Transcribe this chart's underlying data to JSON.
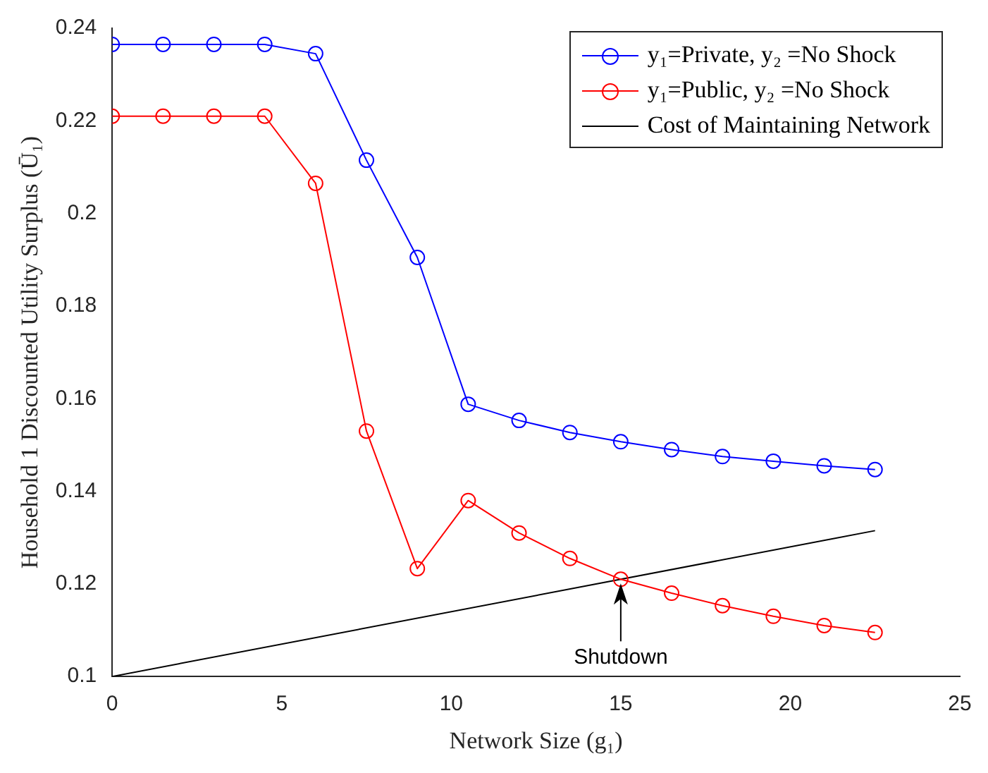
{
  "chart_data": {
    "type": "line",
    "xlabel": "Network Size (g₁)",
    "ylabel": "Household 1 Discounted Utility Surplus (Ū₁)",
    "xlim": [
      0,
      25
    ],
    "xticks": [
      0,
      5,
      10,
      15,
      20,
      25
    ],
    "ylim": [
      0.1,
      0.24
    ],
    "yticks": [
      0.1,
      0.12,
      0.14,
      0.16,
      0.18,
      0.2,
      0.22,
      0.24
    ],
    "grid": false,
    "legend": "top right",
    "marker": "circle",
    "x": [
      0,
      1.5,
      3,
      4.5,
      6,
      7.5,
      9,
      10.5,
      12,
      13.5,
      15,
      16.5,
      18,
      19.5,
      21,
      22.5
    ],
    "series": [
      {
        "name": "y₁=Private, y₂ =No Shock",
        "color": "#0000ff",
        "values": [
          0.2365,
          0.2365,
          0.2365,
          0.2365,
          0.2345,
          0.2115,
          0.1905,
          0.1588,
          0.1553,
          0.1527,
          0.1507,
          0.149,
          0.1475,
          0.1465,
          0.1455,
          0.1447
        ]
      },
      {
        "name": "y₁=Public, y₂ =No Shock",
        "color": "#ff0000",
        "values": [
          0.221,
          0.221,
          0.221,
          0.221,
          0.2065,
          0.153,
          0.1233,
          0.138,
          0.131,
          0.1255,
          0.121,
          0.118,
          0.1153,
          0.113,
          0.111,
          0.1095
        ]
      },
      {
        "name": "Cost of Maintaining Network",
        "color": "#000000",
        "marker": "none",
        "x": [
          0,
          22.5
        ],
        "values": [
          0.1,
          0.1315
        ]
      }
    ],
    "annotations": [
      {
        "text": "Shutdown",
        "x": 15,
        "y": 0.121
      }
    ]
  }
}
